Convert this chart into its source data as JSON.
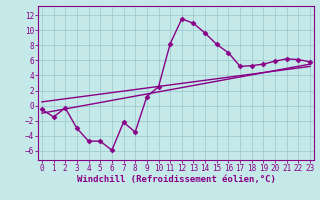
{
  "title": "",
  "xlabel": "Windchill (Refroidissement éolien,°C)",
  "background_color": "#c5e8e8",
  "grid_color": "#9ecece",
  "line_color": "#880088",
  "x_ticks": [
    0,
    1,
    2,
    3,
    4,
    5,
    6,
    7,
    8,
    9,
    10,
    11,
    12,
    13,
    14,
    15,
    16,
    17,
    18,
    19,
    20,
    21,
    22,
    23
  ],
  "y_ticks": [
    -6,
    -4,
    -2,
    0,
    2,
    4,
    6,
    8,
    10,
    12
  ],
  "xlim": [
    -0.3,
    23.3
  ],
  "ylim": [
    -7.2,
    13.2
  ],
  "line1_x": [
    0,
    1,
    2,
    3,
    4,
    5,
    6,
    7,
    8,
    9,
    10,
    11,
    12,
    13,
    14,
    15,
    16,
    17,
    18,
    19,
    20,
    21,
    22,
    23
  ],
  "line1_y": [
    -0.5,
    -1.5,
    -0.3,
    -3.0,
    -4.7,
    -4.7,
    -5.9,
    -2.2,
    -3.5,
    1.2,
    2.5,
    8.2,
    11.5,
    10.9,
    9.6,
    8.1,
    7.0,
    5.2,
    5.3,
    5.5,
    5.9,
    6.2,
    6.1,
    5.8
  ],
  "line2_x": [
    0,
    23
  ],
  "line2_y": [
    -1.0,
    5.5
  ],
  "line3_x": [
    0,
    23
  ],
  "line3_y": [
    0.5,
    5.2
  ],
  "marker": "D",
  "markersize": 2.5,
  "linewidth": 1.0,
  "xlabel_fontsize": 6.5,
  "tick_fontsize": 5.5,
  "spine_color": "#880088"
}
